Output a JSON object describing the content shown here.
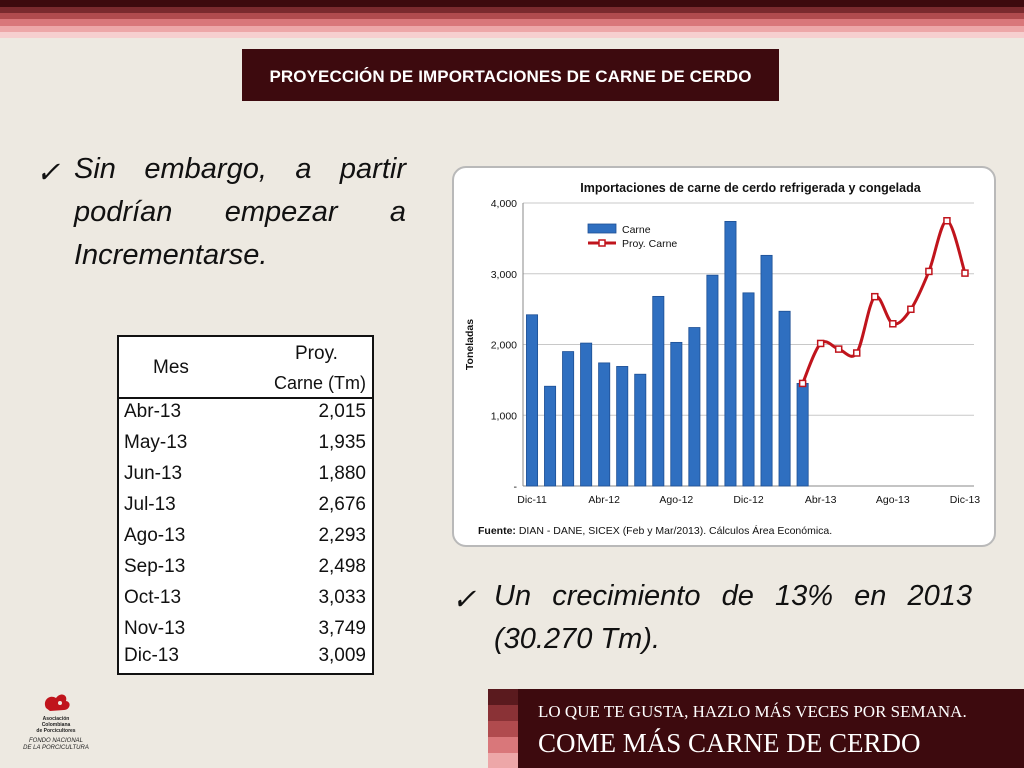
{
  "slide": {
    "title": "PROYECCIÓN DE IMPORTACIONES DE CARNE DE CERDO",
    "bullet1": "Sin embargo, a partir podrían empezar a Incrementarse.",
    "bullet2": "Un crecimiento de 13%  en 2013 (30.270 Tm).",
    "check_icon": "✓"
  },
  "table": {
    "col1": "Mes",
    "col2_line1": "Proy.",
    "col2_line2": "Carne (Tm)",
    "rows": [
      {
        "mes": "Abr-13",
        "valor": "2,015"
      },
      {
        "mes": "May-13",
        "valor": "1,935"
      },
      {
        "mes": "Jun-13",
        "valor": "1,880"
      },
      {
        "mes": "Jul-13",
        "valor": "2,676"
      },
      {
        "mes": "Ago-13",
        "valor": "2,293"
      },
      {
        "mes": "Sep-13",
        "valor": "2,498"
      },
      {
        "mes": "Oct-13",
        "valor": "3,033"
      },
      {
        "mes": "Nov-13",
        "valor": "3,749"
      },
      {
        "mes": "Dic-13",
        "valor": "3,009"
      }
    ]
  },
  "chart_data": {
    "type": "bar",
    "title": "Importaciones de carne de cerdo refrigerada y congelada",
    "ylabel": "Toneladas",
    "xlabel": "",
    "ylim": [
      0,
      4000
    ],
    "yticks": [
      0,
      1000,
      2000,
      3000,
      4000
    ],
    "ytick_labels": [
      "-",
      "1,000",
      "2,000",
      "3,000",
      "4,000"
    ],
    "categories": [
      "Dic-11",
      "Ene-12",
      "Feb-12",
      "Mar-12",
      "Abr-12",
      "May-12",
      "Jun-12",
      "Jul-12",
      "Ago-12",
      "Sep-12",
      "Oct-12",
      "Nov-12",
      "Dic-12",
      "Ene-13",
      "Feb-13",
      "Mar-13",
      "Abr-13",
      "May-13",
      "Jun-13",
      "Jul-13",
      "Ago-13",
      "Sep-13",
      "Oct-13",
      "Nov-13",
      "Dic-13"
    ],
    "xtick_labels": [
      {
        "index": 0,
        "label": "Dic-11"
      },
      {
        "index": 4,
        "label": "Abr-12"
      },
      {
        "index": 8,
        "label": "Ago-12"
      },
      {
        "index": 12,
        "label": "Dic-12"
      },
      {
        "index": 16,
        "label": "Abr-13"
      },
      {
        "index": 20,
        "label": "Ago-13"
      },
      {
        "index": 24,
        "label": "Dic-13"
      }
    ],
    "series": [
      {
        "name": "Carne",
        "kind": "bar",
        "color": "#2f6fc0",
        "values": [
          2420,
          1410,
          1900,
          2020,
          1740,
          1690,
          1580,
          2680,
          2030,
          2240,
          2980,
          3740,
          2730,
          3260,
          2470,
          1450,
          null,
          null,
          null,
          null,
          null,
          null,
          null,
          null,
          null
        ]
      },
      {
        "name": "Proy. Carne",
        "kind": "line",
        "color": "#c0141c",
        "values": [
          null,
          null,
          null,
          null,
          null,
          null,
          null,
          null,
          null,
          null,
          null,
          null,
          null,
          null,
          null,
          1450,
          2015,
          1935,
          1880,
          2676,
          2293,
          2498,
          3033,
          3749,
          3009
        ]
      }
    ],
    "legend": "top-left",
    "grid": true,
    "source_label": "Fuente:",
    "source_text": " DIAN - DANE, SICEX (Feb y Mar/2013). Cálculos Área Económica."
  },
  "footer": {
    "line1": "LO QUE TE GUSTA, HAZLO MÁS VECES POR SEMANA.",
    "line2": "COME MÁS CARNE DE CERDO"
  },
  "logo": {
    "line1": "Asociación",
    "line2": "Colombiana",
    "line3": "de Porcicultores",
    "line4": "FONDO NACIONAL",
    "line5": "DE LA PORCICULTURA"
  },
  "colors": {
    "title_bg": "#3d0a0e",
    "bar": "#2f6fc0",
    "line": "#c0141c"
  }
}
